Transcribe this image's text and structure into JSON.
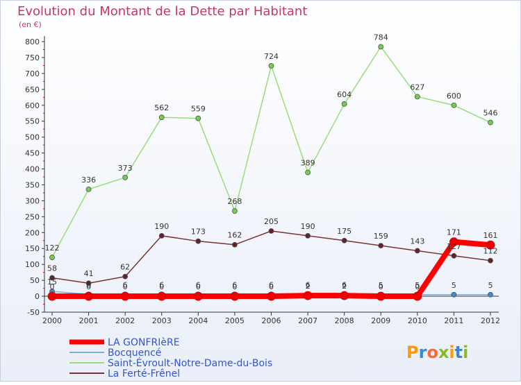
{
  "chart_data": {
    "type": "line",
    "title": "Evolution du Montant de la Dette par Habitant",
    "subtitle": "(en €)",
    "xlabel": "",
    "ylabel": "",
    "ylim": [
      -50,
      800
    ],
    "y_ticks": [
      -50,
      0,
      50,
      100,
      150,
      200,
      250,
      300,
      350,
      400,
      450,
      500,
      550,
      600,
      650,
      700,
      750,
      800
    ],
    "x": [
      "2000",
      "2001",
      "2002",
      "2003",
      "2004",
      "2005",
      "2006",
      "2007",
      "2008",
      "2009",
      "2010",
      "2011",
      "2012"
    ],
    "grid": false,
    "legend_position": "bottom-left",
    "series": [
      {
        "name": "Saint-Évroult-Notre-Dame-du-Bois",
        "color": "#99dd77",
        "marker_color": "#77cc44",
        "values": [
          122,
          336,
          373,
          562,
          559,
          268,
          724,
          389,
          604,
          784,
          627,
          600,
          546
        ],
        "labels": [
          "122",
          "336",
          "373",
          "562",
          "559",
          "268",
          "724",
          "389",
          "604",
          "784",
          "627",
          "600",
          "546"
        ]
      },
      {
        "name": "La Ferté-Frênel",
        "color": "#773333",
        "marker_color": "#662222",
        "values": [
          58,
          41,
          62,
          190,
          173,
          162,
          205,
          190,
          175,
          159,
          143,
          127,
          112
        ],
        "labels": [
          "58",
          "41",
          "62",
          "190",
          "173",
          "162",
          "205",
          "190",
          "175",
          "159",
          "143",
          "127",
          "112"
        ]
      },
      {
        "name": "Bocquencé",
        "color": "#88aacc",
        "marker_color": "#4488cc",
        "values": [
          15,
          6,
          6,
          6,
          6,
          6,
          6,
          6,
          6,
          5,
          5,
          5,
          5
        ],
        "labels": [
          "15",
          "6",
          "6",
          "6",
          "6",
          "6",
          "6",
          "6",
          "6",
          "5",
          "5",
          "5",
          "5"
        ]
      },
      {
        "name": "LA GONFRIèRE",
        "color": "#ff0000",
        "marker_color": "#ee0000",
        "values": [
          0,
          0,
          0,
          0,
          0,
          0,
          0,
          2,
          2,
          0,
          0,
          171,
          161
        ],
        "labels": [
          "0",
          "0",
          "0",
          "0",
          "0",
          "0",
          "0",
          "2",
          "2",
          "0",
          "0",
          "171",
          "161"
        ]
      }
    ],
    "legend": [
      {
        "label": "LA GONFRIèRE",
        "color": "#ff0000",
        "thick": true
      },
      {
        "label": "Bocquencé",
        "color": "#88aacc",
        "thick": false
      },
      {
        "label": "Saint-Évroult-Notre-Dame-du-Bois",
        "color": "#99dd77",
        "thick": false
      },
      {
        "label": "La Ferté-Frênel",
        "color": "#773333",
        "thick": false
      }
    ]
  },
  "branding": {
    "logo_text": "Proxiti"
  }
}
